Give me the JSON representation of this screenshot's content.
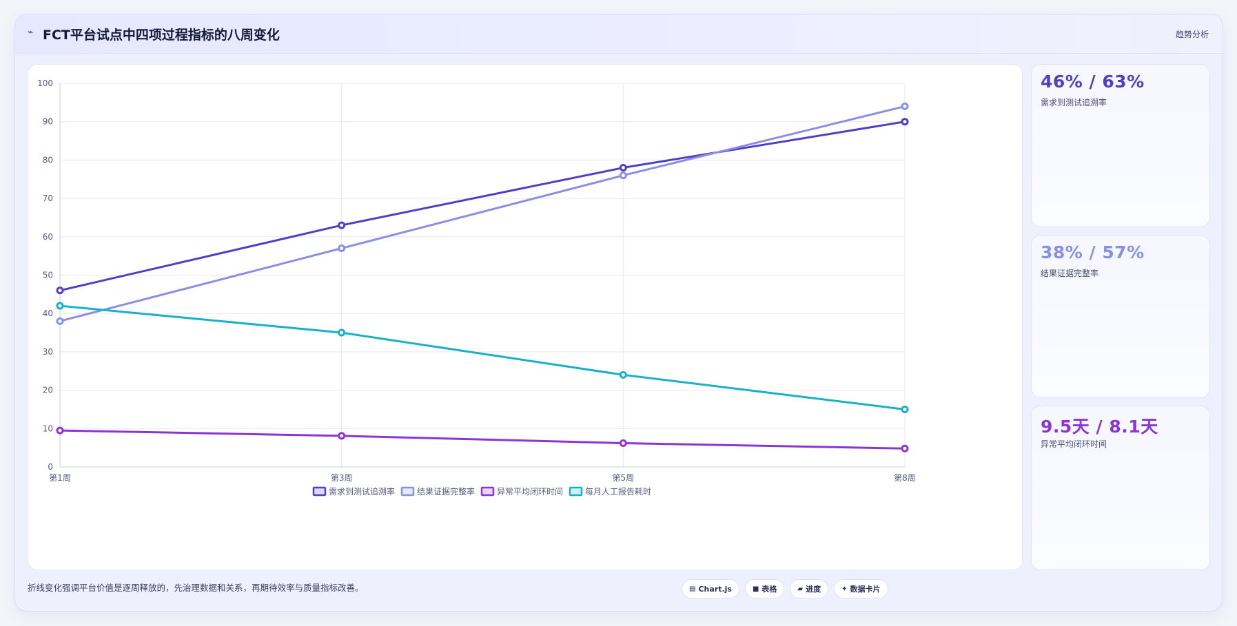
{
  "header": {
    "icon": "trend-line-icon",
    "title": "FCT平台试点中四项过程指标的八周变化",
    "right_label": "趋势分析"
  },
  "chart_data": {
    "type": "line",
    "categories": [
      "第1周",
      "第3周",
      "第5周",
      "第8周"
    ],
    "ylim": [
      0,
      100
    ],
    "yticks": [
      0,
      10,
      20,
      30,
      40,
      50,
      60,
      70,
      80,
      90,
      100
    ],
    "grid": true,
    "legend_position": "bottom",
    "series": [
      {
        "name": "需求到测试追溯率",
        "values": [
          46,
          63,
          78,
          90
        ],
        "color": "#4f3fc6"
      },
      {
        "name": "结果证据完整率",
        "values": [
          38,
          57,
          76,
          94
        ],
        "color": "#8a8fe6"
      },
      {
        "name": "异常平均闭环时间",
        "values": [
          9.5,
          8.1,
          6.2,
          4.8
        ],
        "color": "#8b35d6"
      },
      {
        "name": "每月人工报告耗时",
        "values": [
          42,
          35,
          24,
          15
        ],
        "color": "#16b1c9"
      }
    ]
  },
  "stats": [
    {
      "value": "46% / 63%",
      "label": "需求到测试追溯率",
      "color": "#4f3fc6"
    },
    {
      "value": "38% / 57%",
      "label": "结果证据完整率",
      "color": "#8a8fe6"
    },
    {
      "value": "9.5天 / 8.1天",
      "label": "异常平均闭环时间",
      "color": "#8b35d6"
    }
  ],
  "footer": {
    "note": "折线变化强调平台价值是逐周释放的，先治理数据和关系，再期待效率与质量指标改善。",
    "chips": [
      {
        "icon": "chart-icon",
        "label": "Chart.js"
      },
      {
        "icon": "table-icon",
        "label": "表格"
      },
      {
        "icon": "progress-icon",
        "label": "进度"
      },
      {
        "icon": "data-card-icon",
        "label": "数据卡片"
      }
    ]
  }
}
